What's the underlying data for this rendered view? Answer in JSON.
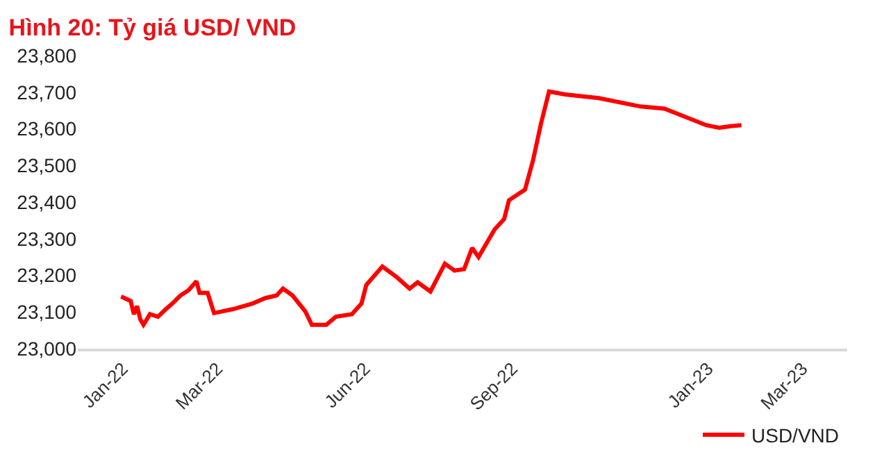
{
  "chart_data": {
    "type": "line",
    "title": "Hình 20: Tỷ giá USD/ VND",
    "x": [
      "2022-01-14",
      "2022-01-20",
      "2022-01-22",
      "2022-01-24",
      "2022-01-26",
      "2022-01-28",
      "2022-02-01",
      "2022-02-06",
      "2022-02-11",
      "2022-02-15",
      "2022-02-20",
      "2022-02-25",
      "2022-03-02",
      "2022-03-04",
      "2022-03-09",
      "2022-03-13",
      "2022-03-25",
      "2022-04-06",
      "2022-04-14",
      "2022-04-21",
      "2022-04-25",
      "2022-05-01",
      "2022-05-09",
      "2022-05-13",
      "2022-05-22",
      "2022-05-28",
      "2022-06-07",
      "2022-06-13",
      "2022-06-16",
      "2022-06-26",
      "2022-07-05",
      "2022-07-13",
      "2022-07-18",
      "2022-07-26",
      "2022-08-04",
      "2022-08-10",
      "2022-08-16",
      "2022-08-21",
      "2022-08-25",
      "2022-09-04",
      "2022-09-10",
      "2022-09-13",
      "2022-09-23",
      "2022-09-28",
      "2022-10-03",
      "2022-10-08",
      "2022-10-18",
      "2022-11-08",
      "2022-12-04",
      "2022-12-19",
      "2022-12-30",
      "2023-01-14",
      "2023-01-22",
      "2023-01-29",
      "2023-02-05"
    ],
    "series": [
      {
        "name": "USD/VND",
        "color": "#ff0000",
        "values": [
          23142,
          23130,
          23094,
          23116,
          23080,
          23065,
          23094,
          23087,
          23108,
          23123,
          23145,
          23159,
          23184,
          23152,
          23152,
          23097,
          23108,
          23123,
          23138,
          23145,
          23164,
          23145,
          23101,
          23065,
          23065,
          23087,
          23094,
          23123,
          23174,
          23224,
          23195,
          23164,
          23181,
          23156,
          23232,
          23213,
          23217,
          23275,
          23250,
          23325,
          23354,
          23405,
          23434,
          23514,
          23615,
          23702,
          23694,
          23684,
          23661,
          23655,
          23636,
          23610,
          23603,
          23607,
          23610
        ]
      }
    ],
    "xlim": [
      "2021-12-18",
      "2023-04-12"
    ],
    "xticks": [
      {
        "value": "2022-01-15",
        "label": "Jan-22"
      },
      {
        "value": "2022-03-15",
        "label": "Mar-22"
      },
      {
        "value": "2022-06-15",
        "label": "Jun-22"
      },
      {
        "value": "2022-09-15",
        "label": "Sep-22"
      },
      {
        "value": "2023-01-15",
        "label": "Jan-23"
      },
      {
        "value": "2023-03-15",
        "label": "Mar-23"
      }
    ],
    "ylim": [
      23000,
      23800
    ],
    "yticks": [
      {
        "value": 23000,
        "label": "23,000"
      },
      {
        "value": 23100,
        "label": "23,100"
      },
      {
        "value": 23200,
        "label": "23,200"
      },
      {
        "value": 23300,
        "label": "23,300"
      },
      {
        "value": 23400,
        "label": "23,400"
      },
      {
        "value": 23500,
        "label": "23,500"
      },
      {
        "value": 23600,
        "label": "23,600"
      },
      {
        "value": 23700,
        "label": "23,700"
      },
      {
        "value": 23800,
        "label": "23,800"
      }
    ],
    "legend": "bottom right",
    "marker": "none",
    "line_style": "solid"
  }
}
